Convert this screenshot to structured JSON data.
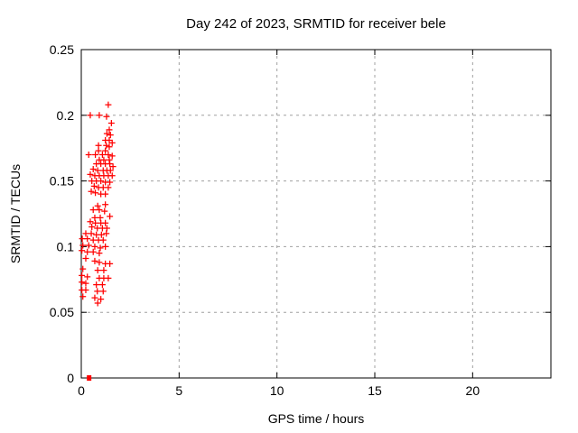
{
  "chart_data": {
    "type": "scatter",
    "title": "Day 242 of 2023, SRMTID for receiver bele",
    "xlabel": "GPS time / hours",
    "ylabel": "SRMTID / TECUs",
    "xlim": [
      0,
      24
    ],
    "ylim": [
      0,
      0.25
    ],
    "xticks": {
      "values": [
        0,
        5,
        10,
        15,
        20
      ],
      "labels": [
        "0",
        "5",
        "10",
        "15",
        "20"
      ]
    },
    "yticks": {
      "values": [
        0,
        0.05,
        0.1,
        0.15,
        0.2,
        0.25
      ],
      "labels": [
        "0",
        "0.05",
        "0.1",
        "0.15",
        "0.2",
        "0.25"
      ]
    },
    "grid": true,
    "legend": "none",
    "colors": {
      "marker": "#ff0000",
      "grid": "#a0a0a0",
      "frame": "#000000",
      "background": "#ffffff",
      "text": "#000000"
    },
    "series": [
      {
        "name": "SRMTID",
        "marker": "plus",
        "color": "#ff0000",
        "points": [
          [
            1.38,
            0.208
          ],
          [
            0.46,
            0.2
          ],
          [
            0.92,
            0.2
          ],
          [
            1.29,
            0.199
          ],
          [
            1.54,
            0.194
          ],
          [
            1.43,
            0.189
          ],
          [
            1.31,
            0.186
          ],
          [
            1.49,
            0.185
          ],
          [
            1.23,
            0.181
          ],
          [
            1.43,
            0.181
          ],
          [
            1.58,
            0.179
          ],
          [
            0.88,
            0.177
          ],
          [
            1.28,
            0.177
          ],
          [
            1.43,
            0.176
          ],
          [
            0.88,
            0.173
          ],
          [
            1.23,
            0.173
          ],
          [
            0.38,
            0.17
          ],
          [
            0.72,
            0.17
          ],
          [
            1.08,
            0.17
          ],
          [
            1.38,
            0.17
          ],
          [
            1.58,
            0.169
          ],
          [
            0.92,
            0.166
          ],
          [
            1.15,
            0.166
          ],
          [
            1.43,
            0.166
          ],
          [
            0.77,
            0.163
          ],
          [
            1.0,
            0.163
          ],
          [
            1.23,
            0.163
          ],
          [
            1.46,
            0.163
          ],
          [
            1.62,
            0.161
          ],
          [
            0.61,
            0.159
          ],
          [
            0.84,
            0.158
          ],
          [
            1.12,
            0.158
          ],
          [
            1.31,
            0.158
          ],
          [
            1.49,
            0.158
          ],
          [
            0.46,
            0.155
          ],
          [
            0.69,
            0.154
          ],
          [
            0.92,
            0.154
          ],
          [
            1.15,
            0.154
          ],
          [
            1.38,
            0.154
          ],
          [
            1.58,
            0.154
          ],
          [
            0.54,
            0.15
          ],
          [
            0.77,
            0.15
          ],
          [
            1.0,
            0.15
          ],
          [
            1.23,
            0.149
          ],
          [
            1.46,
            0.149
          ],
          [
            0.66,
            0.146
          ],
          [
            0.88,
            0.145
          ],
          [
            1.12,
            0.145
          ],
          [
            1.38,
            0.145
          ],
          [
            0.51,
            0.142
          ],
          [
            0.72,
            0.141
          ],
          [
            1.0,
            0.14
          ],
          [
            1.23,
            0.14
          ],
          [
            0.84,
            0.131
          ],
          [
            1.23,
            0.132
          ],
          [
            0.61,
            0.128
          ],
          [
            0.92,
            0.128
          ],
          [
            1.19,
            0.127
          ],
          [
            1.46,
            0.123
          ],
          [
            0.69,
            0.122
          ],
          [
            0.97,
            0.122
          ],
          [
            0.46,
            0.119
          ],
          [
            0.72,
            0.118
          ],
          [
            1.0,
            0.118
          ],
          [
            1.23,
            0.118
          ],
          [
            0.54,
            0.115
          ],
          [
            0.82,
            0.114
          ],
          [
            1.08,
            0.114
          ],
          [
            1.31,
            0.114
          ],
          [
            0.23,
            0.11
          ],
          [
            0.51,
            0.11
          ],
          [
            0.77,
            0.109
          ],
          [
            1.03,
            0.109
          ],
          [
            1.28,
            0.11
          ],
          [
            0.05,
            0.106
          ],
          [
            0.31,
            0.106
          ],
          [
            0.61,
            0.105
          ],
          [
            0.88,
            0.105
          ],
          [
            1.12,
            0.105
          ],
          [
            0.08,
            0.101
          ],
          [
            0.38,
            0.101
          ],
          [
            0.69,
            0.1
          ],
          [
            0.97,
            0.099
          ],
          [
            1.23,
            0.1
          ],
          [
            0.03,
            0.097
          ],
          [
            0.31,
            0.096
          ],
          [
            0.61,
            0.096
          ],
          [
            0.92,
            0.095
          ],
          [
            0.23,
            0.091
          ],
          [
            0.69,
            0.089
          ],
          [
            0.92,
            0.088
          ],
          [
            1.23,
            0.087
          ],
          [
            1.46,
            0.087
          ],
          [
            0.08,
            0.083
          ],
          [
            0.84,
            0.082
          ],
          [
            1.15,
            0.082
          ],
          [
            0.03,
            0.078
          ],
          [
            0.31,
            0.077
          ],
          [
            0.92,
            0.076
          ],
          [
            1.15,
            0.076
          ],
          [
            1.38,
            0.076
          ],
          [
            0.03,
            0.073
          ],
          [
            0.23,
            0.072
          ],
          [
            0.77,
            0.071
          ],
          [
            1.08,
            0.071
          ],
          [
            0.03,
            0.067
          ],
          [
            0.23,
            0.067
          ],
          [
            0.82,
            0.066
          ],
          [
            1.12,
            0.066
          ],
          [
            0.08,
            0.062
          ],
          [
            0.69,
            0.061
          ],
          [
            1.0,
            0.06
          ],
          [
            0.84,
            0.057
          ]
        ]
      },
      {
        "name": "zero-value-marker",
        "marker": "filled-square",
        "color": "#ff0000",
        "points": [
          [
            0.4,
            0.0
          ]
        ]
      }
    ]
  }
}
